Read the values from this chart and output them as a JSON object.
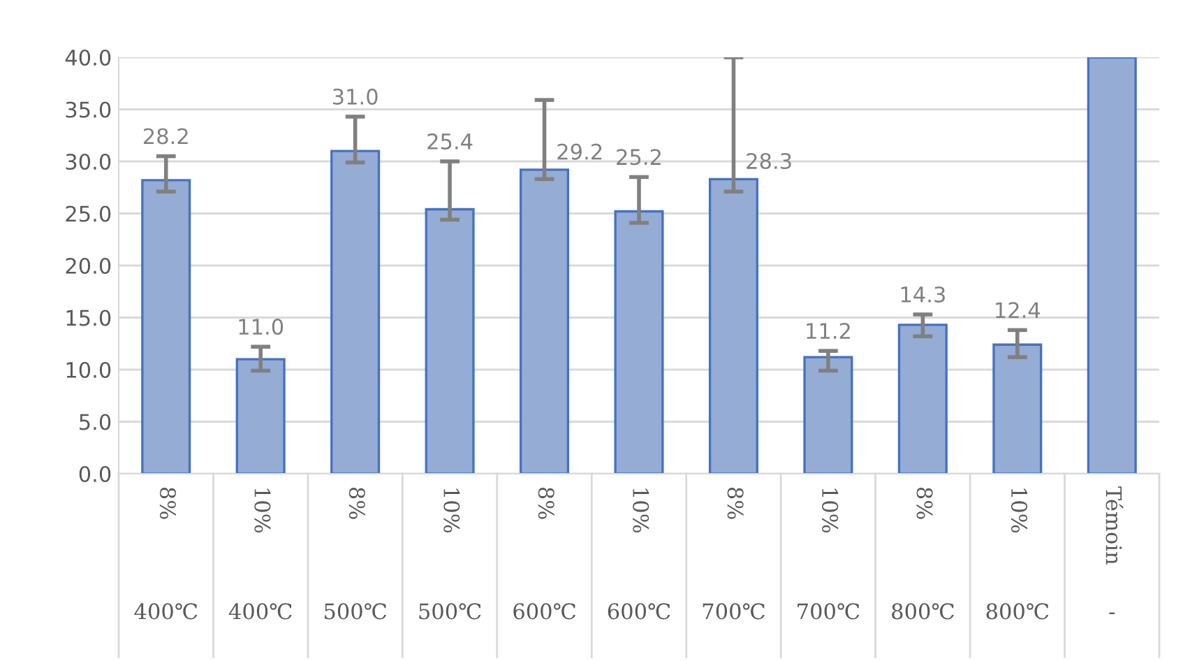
{
  "chart_data": {
    "type": "bar",
    "categories": [
      "8%\n400℃",
      "10%\n400℃",
      "8%\n500℃",
      "10%\n500℃",
      "8%\n600℃",
      "10%\n600℃",
      "8%\n700℃",
      "10%\n700℃",
      "8%\n800℃",
      "10%\n800℃",
      "Témoin\n-"
    ],
    "values": [
      28.2,
      11.0,
      31.0,
      25.4,
      29.2,
      25.2,
      28.3,
      11.2,
      14.3,
      12.4,
      40
    ],
    "value_labels": [
      "28.2",
      "11.0",
      "31.0",
      "25.4",
      "29.2",
      "25.2",
      "28.3",
      "11.2",
      "14.3",
      "12.4",
      null
    ],
    "errors": [
      [
        27.1,
        30.5
      ],
      [
        9.9,
        12.2
      ],
      [
        29.9,
        34.3
      ],
      [
        24.4,
        30.0
      ],
      [
        28.3,
        35.9
      ],
      [
        24.1,
        28.5
      ],
      [
        27.1,
        40
      ],
      [
        9.9,
        11.8
      ],
      [
        13.2,
        15.3
      ],
      [
        11.2,
        13.8
      ],
      null
    ],
    "color": "#95acd4",
    "ylim": [
      0,
      40
    ],
    "yticks": [
      {
        "value": 0,
        "label": "0.0"
      },
      {
        "value": 5,
        "label": "5.0"
      },
      {
        "value": 10,
        "label": "10.0"
      },
      {
        "value": 15,
        "label": "15.0"
      },
      {
        "value": 20,
        "label": "20.0"
      },
      {
        "value": 25,
        "label": "25.0"
      },
      {
        "value": 30,
        "label": "30.0"
      },
      {
        "value": 35,
        "label": "35.0"
      },
      {
        "value": 40,
        "label": "40.0"
      }
    ],
    "grid": "y"
  }
}
